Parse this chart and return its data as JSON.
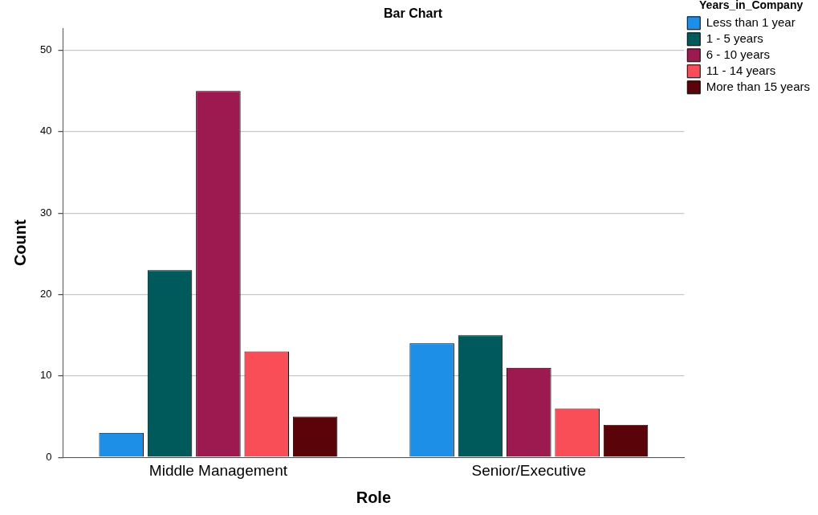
{
  "chart_data": {
    "type": "bar",
    "title": "Bar Chart",
    "xlabel": "Role",
    "ylabel": "Count",
    "legend_title": "Years_in_Company",
    "categories": [
      "Middle Management",
      "Senior/Executive"
    ],
    "series": [
      {
        "name": "Less than 1 year",
        "color": "#1e8fe6",
        "values": [
          3,
          14
        ]
      },
      {
        "name": "1 - 5 years",
        "color": "#005a5b",
        "values": [
          23,
          15
        ]
      },
      {
        "name": "6 - 10 years",
        "color": "#9c1a50",
        "values": [
          45,
          11
        ]
      },
      {
        "name": "11 - 14 years",
        "color": "#f94e57",
        "values": [
          13,
          6
        ]
      },
      {
        "name": "More than 15 years",
        "color": "#5a0308",
        "values": [
          5,
          4
        ]
      }
    ],
    "ylim": [
      0,
      52.7
    ],
    "yticks": [
      0,
      10,
      20,
      30,
      40,
      50
    ],
    "grid": "y",
    "legend": "top right"
  }
}
